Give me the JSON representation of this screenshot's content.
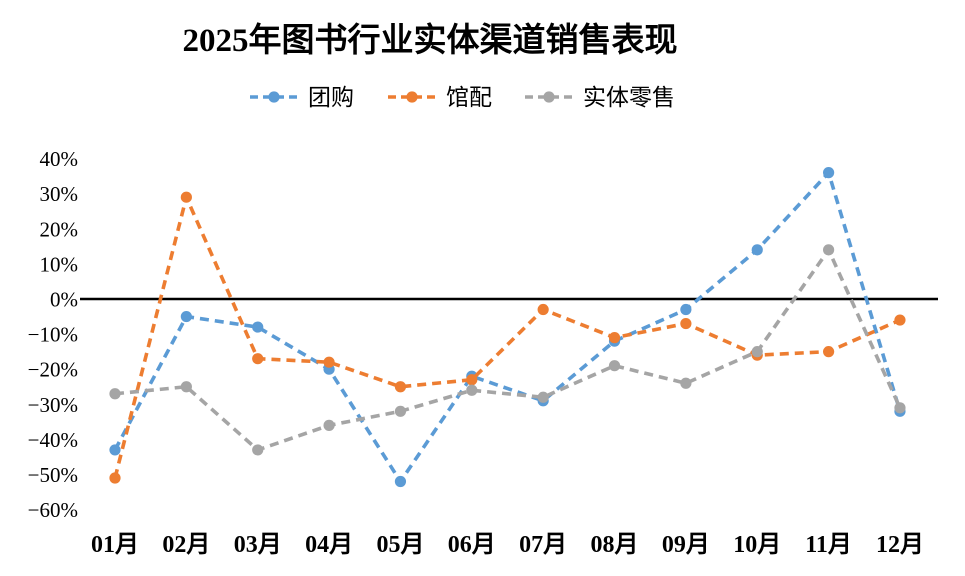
{
  "title": "2025年图书行业实体渠道销售表现",
  "chart_data": {
    "type": "line",
    "title": "2025年图书行业实体渠道销售表现",
    "categories": [
      "01月",
      "02月",
      "03月",
      "04月",
      "05月",
      "06月",
      "07月",
      "08月",
      "09月",
      "10月",
      "11月",
      "12月"
    ],
    "series": [
      {
        "name": "团购",
        "color": "#5B9BD5",
        "values": [
          -43,
          -5,
          -8,
          -20,
          -52,
          -22,
          -29,
          -12,
          -3,
          14,
          36,
          -32
        ]
      },
      {
        "name": "馆配",
        "color": "#ED7D31",
        "values": [
          -51,
          29,
          -17,
          -18,
          -25,
          -23,
          -3,
          -11,
          -7,
          -16,
          -15,
          -6
        ]
      },
      {
        "name": "实体零售",
        "color": "#A5A5A5",
        "values": [
          -27,
          -25,
          -43,
          -36,
          -32,
          -26,
          -28,
          -19,
          -24,
          -15,
          14,
          -31
        ]
      }
    ],
    "xlabel": "",
    "ylabel": "",
    "ylim": [
      -60,
      40
    ],
    "yticks": [
      {
        "label": "40%",
        "value": 40
      },
      {
        "label": "30%",
        "value": 30
      },
      {
        "label": "20%",
        "value": 20
      },
      {
        "label": "10%",
        "value": 10
      },
      {
        "label": "0%",
        "value": 0
      },
      {
        "label": "−10%",
        "value": -10
      },
      {
        "label": "−20%",
        "value": -20
      },
      {
        "label": "−30%",
        "value": -30
      },
      {
        "label": "−40%",
        "value": -40
      },
      {
        "label": "−50%",
        "value": -50
      },
      {
        "label": "−60%",
        "value": -60
      }
    ],
    "grid": false,
    "zero_line": true,
    "line_style": "dashed",
    "marker": "circle",
    "legend_position": "top-center",
    "axis_color": "#000000"
  }
}
